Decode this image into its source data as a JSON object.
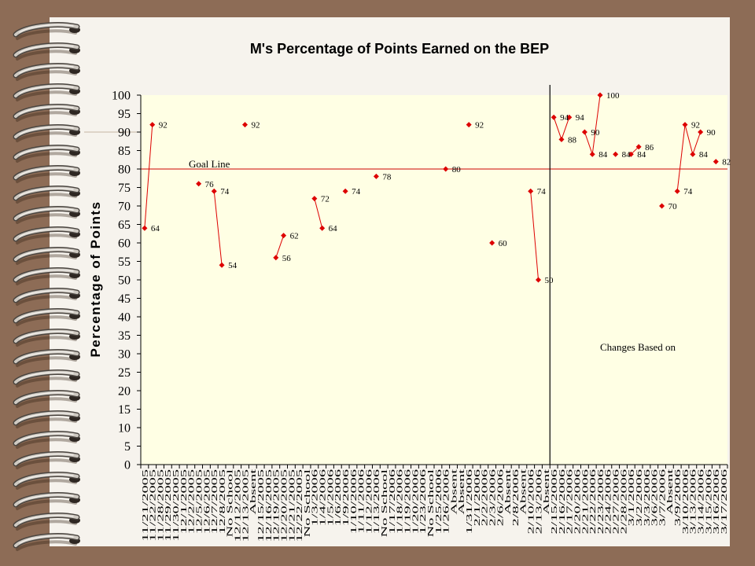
{
  "chart_data": {
    "type": "line",
    "title": "M's Percentage of Points Earned on the BEP",
    "ylabel": "Percentage of Points",
    "ylim": [
      0,
      100
    ],
    "yticks": [
      0,
      5,
      10,
      15,
      20,
      25,
      30,
      35,
      40,
      45,
      50,
      55,
      60,
      65,
      70,
      75,
      80,
      85,
      90,
      95,
      100
    ],
    "grid": false,
    "legend": "none",
    "show_data_labels": true,
    "plot_background": "#ffffe4",
    "categories": [
      "11/21/2005",
      "11/22/2005",
      "11/28/2005",
      "11/29/2005",
      "11/30/2005",
      "12/1/2005",
      "12/2/2005",
      "12/5/2005",
      "12/6/2005",
      "12/7/2005",
      "12/8/2005",
      "No School",
      "12/12/2005",
      "12/13/2005",
      "Absent",
      "12/15/2005",
      "12/16/2005",
      "12/19/2005",
      "12/20/2005",
      "12/21/2005",
      "12/22/2005",
      "No School",
      "1/3/2006",
      "1/4/2006",
      "1/5/2006",
      "1/6/2006",
      "1/9/2006",
      "1/10/2006",
      "1/11/2006",
      "1/12/2006",
      "1/13/2006",
      "No School",
      "1/17/2006",
      "1/18/2006",
      "1/19/2006",
      "1/20/2006",
      "1/23/2006",
      "No School",
      "1/25/2006",
      "1/26/2006",
      "Absent",
      "Absent",
      "1/31/2006",
      "2/1/2006",
      "2/2/2006",
      "2/3/2006",
      "2/6/2006",
      "Absent",
      "2/8/2006",
      "Absent",
      "2/10/2006",
      "2/13/2006",
      "Absent",
      "2/15/2006",
      "2/16/2006",
      "2/17/2006",
      "2/20/2006",
      "2/21/2006",
      "2/22/2006",
      "2/23/2006",
      "2/24/2006",
      "2/27/2006",
      "2/28/2006",
      "3/1/2006",
      "3/2/2006",
      "3/3/2006",
      "3/6/2006",
      "3/7/2006",
      "Absent",
      "3/9/2006",
      "3/10/2006",
      "3/13/2006",
      "3/14/2006",
      "3/15/2006",
      "3/16/2006",
      "3/17/2006"
    ],
    "series": [
      {
        "color": "#dd0000",
        "marker": "diamond",
        "values": [
          64,
          92,
          null,
          null,
          null,
          null,
          null,
          76,
          null,
          74,
          54,
          null,
          null,
          92,
          null,
          null,
          null,
          56,
          62,
          null,
          null,
          null,
          72,
          64,
          null,
          null,
          74,
          null,
          null,
          null,
          78,
          null,
          null,
          null,
          null,
          null,
          null,
          null,
          null,
          80,
          null,
          null,
          92,
          null,
          null,
          60,
          null,
          null,
          null,
          null,
          74,
          50,
          null,
          94,
          88,
          94,
          null,
          90,
          84,
          100,
          null,
          84,
          null,
          84,
          86,
          null,
          null,
          70,
          null,
          74,
          92,
          84,
          90,
          null,
          82,
          null
        ]
      }
    ],
    "goal_line": {
      "value": 80,
      "label": "Goal Line",
      "color": "#cc0000"
    },
    "phase_change": {
      "between_categories": [
        52,
        53
      ],
      "annotation": "Changes Based on",
      "color": "#000000"
    }
  }
}
